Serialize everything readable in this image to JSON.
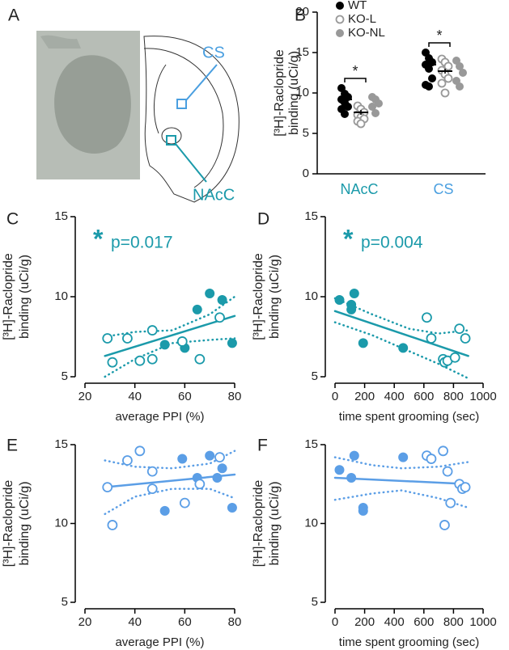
{
  "panel_a": {
    "panel": "A",
    "labels": [
      "CS",
      "NAcC"
    ]
  },
  "chart_data": [
    {
      "type": "strip",
      "panel": "B",
      "ylabel": [
        "[³H]-Raclopride",
        "binding (uCi/g)"
      ],
      "categories": [
        "NAcC",
        "CS"
      ],
      "category_colors": [
        "#1b9aaa",
        "#4a9fe0"
      ],
      "ylim": [
        0,
        20
      ],
      "yticks": [
        0,
        5,
        10,
        15,
        20
      ],
      "legend": "top-right",
      "annotations": [
        "*",
        "*"
      ],
      "series": [
        {
          "name": "WT",
          "color": "#000000",
          "style": "filled",
          "values": [
            [
              10.6,
              9.9,
              9.5,
              9.2,
              8.8,
              8.3,
              8.0,
              7.4
            ],
            [
              15.0,
              14.3,
              13.8,
              13.5,
              13.0,
              11.8,
              11.0,
              10.8
            ]
          ],
          "means": [
            9.2,
            13.5
          ],
          "errors": [
            0.4,
            0.5
          ]
        },
        {
          "name": "KO-L",
          "color": "#999999",
          "style": "open",
          "values": [
            [
              8.4,
              8.0,
              7.6,
              7.3,
              7.0,
              6.8,
              6.5,
              6.2
            ],
            [
              14.2,
              13.8,
              13.3,
              12.8,
              12.3,
              11.8,
              11.2,
              10.0
            ]
          ],
          "means": [
            7.6,
            12.7
          ],
          "errors": [
            0.3,
            0.3
          ]
        },
        {
          "name": "KO-NL",
          "color": "#999999",
          "style": "filled",
          "values": [
            [
              9.5,
              9.2,
              8.7,
              8.3,
              7.5
            ],
            [
              14.0,
              13.3,
              12.5,
              11.5,
              10.8
            ]
          ]
        }
      ]
    },
    {
      "type": "scatter",
      "panel": "C",
      "ylabel": [
        "[³H]-Raclopride",
        "binding (uCi/g)"
      ],
      "xlabel": "average PPI (%)",
      "xlim": [
        20,
        80
      ],
      "xticks": [
        20,
        40,
        60,
        80
      ],
      "ylim": [
        5,
        15
      ],
      "yticks": [
        5,
        10,
        15
      ],
      "color": "#1b9aaa",
      "annotation": {
        "star": "*",
        "text": "p=0.017"
      },
      "series": [
        {
          "style": "filled",
          "x": [
            52,
            60,
            65,
            70,
            75,
            79
          ],
          "y": [
            7.0,
            6.8,
            9.2,
            10.2,
            9.8,
            7.1
          ]
        },
        {
          "style": "open",
          "x": [
            29,
            31,
            37,
            42,
            47,
            47,
            59,
            66,
            74
          ],
          "y": [
            7.4,
            5.9,
            7.4,
            6.0,
            6.1,
            7.9,
            7.2,
            6.1,
            8.7
          ]
        }
      ],
      "fit": {
        "x": [
          28,
          80
        ],
        "y": [
          6.3,
          8.8
        ]
      },
      "ci_upper": {
        "x": [
          28,
          40,
          55,
          70,
          80
        ],
        "y": [
          7.5,
          7.8,
          7.9,
          8.9,
          10.0
        ]
      },
      "ci_lower": {
        "x": [
          28,
          40,
          55,
          70,
          80
        ],
        "y": [
          5.0,
          6.1,
          7.1,
          7.3,
          7.4
        ]
      }
    },
    {
      "type": "scatter",
      "panel": "D",
      "ylabel": [
        "[³H]-Raclopride",
        "binding (uCi/g)"
      ],
      "xlabel": "time spent grooming (sec)",
      "xlim": [
        0,
        1000
      ],
      "xticks": [
        0,
        200,
        400,
        600,
        800,
        1000
      ],
      "ylim": [
        5,
        15
      ],
      "yticks": [
        5,
        10,
        15
      ],
      "color": "#1b9aaa",
      "annotation": {
        "star": "*",
        "text": "p=0.004"
      },
      "series": [
        {
          "style": "filled",
          "x": [
            30,
            110,
            110,
            130,
            190,
            460
          ],
          "y": [
            9.8,
            9.5,
            9.2,
            10.2,
            7.1,
            6.8
          ]
        },
        {
          "style": "open",
          "x": [
            620,
            650,
            730,
            740,
            760,
            810,
            840,
            880
          ],
          "y": [
            8.7,
            7.4,
            6.1,
            5.9,
            6.0,
            6.2,
            8.0,
            7.4
          ]
        }
      ],
      "fit": {
        "x": [
          0,
          900
        ],
        "y": [
          9.1,
          6.3
        ]
      },
      "ci_upper": {
        "x": [
          0,
          250,
          500,
          700,
          900
        ],
        "y": [
          9.9,
          8.9,
          8.0,
          7.7,
          7.9
        ]
      },
      "ci_lower": {
        "x": [
          0,
          250,
          450,
          700,
          900
        ],
        "y": [
          8.4,
          7.6,
          6.8,
          5.8,
          4.9
        ]
      }
    },
    {
      "type": "scatter",
      "panel": "E",
      "ylabel": [
        "[³H]-Raclopride",
        "binding (uCi/g)"
      ],
      "xlabel": "average PPI (%)",
      "xlim": [
        20,
        80
      ],
      "xticks": [
        20,
        40,
        60,
        80
      ],
      "ylim": [
        5,
        15
      ],
      "yticks": [
        5,
        10,
        15
      ],
      "color": "#5b9ee6",
      "series": [
        {
          "style": "filled",
          "x": [
            52,
            59,
            65,
            70,
            73,
            75,
            79
          ],
          "y": [
            10.8,
            14.1,
            12.9,
            14.3,
            12.9,
            13.5,
            11.0
          ]
        },
        {
          "style": "open",
          "x": [
            29,
            31,
            37,
            42,
            47,
            47,
            60,
            66,
            74
          ],
          "y": [
            12.3,
            9.9,
            14.0,
            14.6,
            13.3,
            12.2,
            11.3,
            12.5,
            14.2
          ]
        }
      ],
      "fit": {
        "x": [
          28,
          80
        ],
        "y": [
          12.3,
          13.1
        ]
      },
      "ci_upper": {
        "x": [
          28,
          40,
          55,
          70,
          80
        ],
        "y": [
          14.0,
          13.6,
          13.5,
          13.8,
          14.6
        ]
      },
      "ci_lower": {
        "x": [
          28,
          40,
          55,
          70,
          80
        ],
        "y": [
          10.6,
          11.7,
          12.2,
          12.2,
          11.6
        ]
      }
    },
    {
      "type": "scatter",
      "panel": "F",
      "ylabel": [
        "[³H]-Raclopride",
        "binding (uCi/g)"
      ],
      "xlabel": "time spent grooming (sec)",
      "xlim": [
        0,
        1000
      ],
      "xticks": [
        0,
        200,
        400,
        600,
        800,
        1000
      ],
      "ylim": [
        5,
        15
      ],
      "yticks": [
        5,
        10,
        15
      ],
      "color": "#5b9ee6",
      "series": [
        {
          "style": "filled",
          "x": [
            30,
            110,
            130,
            190,
            190,
            460
          ],
          "y": [
            13.4,
            12.9,
            14.3,
            11.0,
            10.8,
            14.2
          ]
        },
        {
          "style": "open",
          "x": [
            620,
            650,
            730,
            740,
            760,
            780,
            840,
            860,
            880
          ],
          "y": [
            14.3,
            14.1,
            14.6,
            9.9,
            13.3,
            11.3,
            12.5,
            12.2,
            12.3
          ]
        }
      ],
      "fit": {
        "x": [
          0,
          900
        ],
        "y": [
          12.9,
          12.5
        ]
      },
      "ci_upper": {
        "x": [
          0,
          250,
          450,
          700,
          900
        ],
        "y": [
          14.2,
          13.7,
          13.5,
          13.6,
          13.9
        ]
      },
      "ci_lower": {
        "x": [
          0,
          250,
          450,
          700,
          900
        ],
        "y": [
          11.5,
          11.9,
          12.1,
          11.6,
          11.0
        ]
      }
    }
  ]
}
